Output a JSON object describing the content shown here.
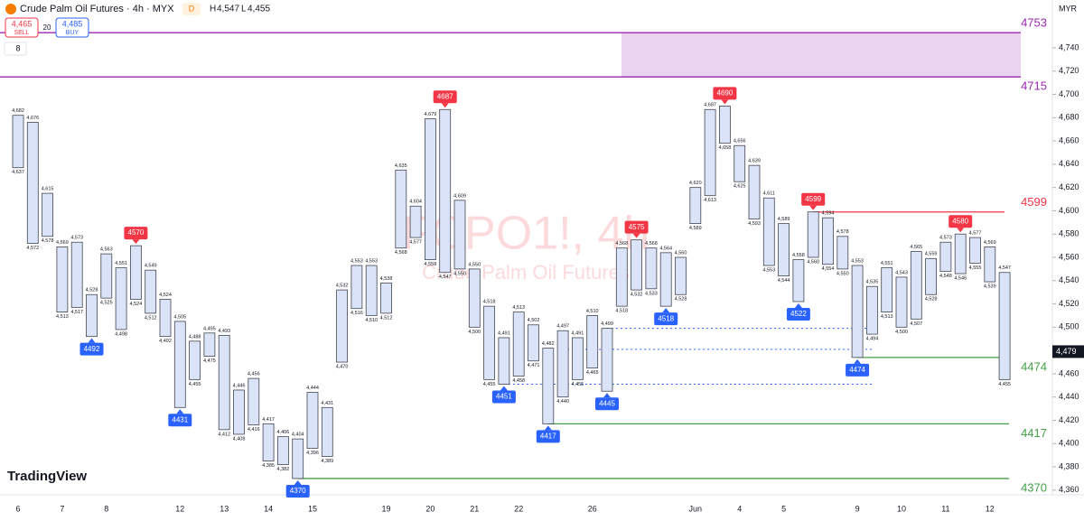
{
  "header": {
    "symbol": "Crude Palm Oil Futures · 4h · MYX",
    "badge": "D",
    "high_prefix": "H",
    "high": "4,547",
    "low_prefix": "L",
    "low": "4,455",
    "sell_price": "4,465",
    "sell": "SELL",
    "spread": "20",
    "buy_price": "4,485",
    "buy": "BUY",
    "indicators": "8",
    "currency": "MYR"
  },
  "watermark": {
    "ticker": "FCPO1!, 4h",
    "name": "Crude Palm Oil Futures"
  },
  "logo": "TradingView",
  "chart_data": {
    "type": "box",
    "categories": [
      "6",
      null,
      null,
      "7",
      null,
      null,
      "8",
      null,
      null,
      null,
      null,
      "12",
      null,
      null,
      "13",
      null,
      null,
      "14",
      null,
      null,
      "15",
      null,
      null,
      null,
      null,
      "19",
      null,
      null,
      "20",
      null,
      null,
      "21",
      null,
      null,
      "22",
      null,
      null,
      null,
      null,
      "26",
      null,
      null,
      null,
      null,
      null,
      null,
      "Jun",
      null,
      null,
      "4",
      null,
      null,
      "5",
      null,
      null,
      null,
      null,
      "9",
      null,
      null,
      "10",
      null,
      null,
      "11",
      null,
      null,
      "12",
      null
    ],
    "top": [
      4682,
      4676,
      4615,
      4569,
      4573,
      4528,
      4563,
      4551,
      4570,
      4549,
      4524,
      4505,
      4488,
      4495,
      4493,
      4446,
      4456,
      4417,
      4406,
      4404,
      4444,
      4431,
      4532,
      4553,
      4553,
      4538,
      4635,
      4604,
      4679,
      4687,
      4609,
      4550,
      4518,
      4491,
      4513,
      4502,
      4482,
      4497,
      4491,
      4510,
      4499,
      4568,
      4575,
      4568,
      4564,
      4560,
      4620,
      4687,
      4690,
      4656,
      4639,
      4611,
      4589,
      4558,
      4599,
      4594,
      4578,
      4553,
      4535,
      4551,
      4543,
      4565,
      4559,
      4573,
      4580,
      4577,
      4569,
      4547
    ],
    "top_labels": [
      "4,682",
      "4,676",
      "4,615",
      "4,569",
      "4,573",
      "4,528",
      "4,563",
      "4,551",
      null,
      "4,549",
      "4,524",
      "4,505",
      "4,488",
      "4,495",
      "4,493",
      "4,446",
      "4,456",
      "4,417",
      "4,406",
      "4,404",
      "4,444",
      "4,431",
      "4,532",
      "4,553",
      "4,553",
      "4,538",
      "4,635",
      "4,604",
      "4,679",
      null,
      "4,609",
      "4,550",
      "4,518",
      "4,491",
      "4,513",
      "4,502",
      "4,482",
      "4,497",
      "4,491",
      "4,510",
      "4,499",
      "4,568",
      null,
      "4,568",
      "4,564",
      "4,560",
      "4,620",
      "4,687",
      null,
      "4,656",
      "4,639",
      "4,611",
      "4,589",
      "4,558",
      null,
      "4,594",
      "4,578",
      "4,553",
      "4,535",
      "4,551",
      "4,543",
      "4,565",
      "4,559",
      "4,573",
      null,
      "4,577",
      "4,569",
      "4,547"
    ],
    "bottom": [
      4637,
      4572,
      4578,
      4513,
      4517,
      4492,
      4525,
      4498,
      4524,
      4512,
      4492,
      4431,
      4455,
      4475,
      4412,
      4408,
      4416,
      4385,
      4382,
      4370,
      4396,
      4389,
      4470,
      4516,
      4510,
      4512,
      4568,
      4577,
      4558,
      4547,
      4550,
      4500,
      4455,
      4451,
      4458,
      4471,
      4417,
      4440,
      4455,
      4465,
      4445,
      4518,
      4532,
      4533,
      4518,
      4528,
      4589,
      4613,
      4658,
      4625,
      4593,
      4553,
      4544,
      4522,
      4560,
      4554,
      4550,
      4474,
      4494,
      4513,
      4500,
      4507,
      4528,
      4548,
      4546,
      4555,
      4539,
      4455
    ],
    "bottom_labels": [
      "4,637",
      "4,572",
      "4,578",
      "4,513",
      "4,517",
      null,
      "4,525",
      "4,498",
      "4,524",
      "4,512",
      "4,492",
      null,
      "4,455",
      "4,475",
      "4,412",
      "4,408",
      "4,416",
      "4,385",
      "4,382",
      null,
      "4,396",
      "4,389",
      "4,470",
      "4,516",
      "4,510",
      "4,512",
      "4,568",
      "4,577",
      "4,558",
      "4,547",
      "4,550",
      "4,500",
      "4,455",
      null,
      "4,458",
      "4,471",
      null,
      "4,440",
      "4,455",
      "4,465",
      null,
      "4,518",
      "4,532",
      "4,533",
      null,
      "4,528",
      "4,589",
      "4,613",
      "4,658",
      "4,625",
      "4,593",
      "4,553",
      "4,544",
      null,
      "4,560",
      "4,554",
      "4,550",
      null,
      "4,494",
      "4,513",
      "4,500",
      "4,507",
      "4,528",
      "4,548",
      "4,546",
      "4,555",
      "4,539",
      "4,455"
    ],
    "highs": [
      null,
      null,
      null,
      null,
      null,
      null,
      null,
      null,
      4570,
      null,
      null,
      null,
      null,
      null,
      null,
      null,
      null,
      null,
      null,
      null,
      null,
      null,
      null,
      null,
      null,
      null,
      null,
      null,
      null,
      4687,
      null,
      null,
      null,
      null,
      null,
      null,
      null,
      null,
      null,
      null,
      null,
      null,
      4575,
      null,
      null,
      null,
      null,
      null,
      4690,
      null,
      null,
      null,
      null,
      null,
      4599,
      null,
      null,
      null,
      null,
      null,
      null,
      null,
      null,
      null,
      4580,
      null,
      null,
      null
    ],
    "lows": [
      null,
      null,
      null,
      null,
      null,
      4492,
      null,
      null,
      null,
      null,
      null,
      4431,
      null,
      null,
      null,
      null,
      null,
      null,
      null,
      4370,
      null,
      null,
      null,
      null,
      null,
      null,
      null,
      null,
      null,
      null,
      null,
      null,
      null,
      4451,
      null,
      null,
      4417,
      null,
      null,
      null,
      4445,
      null,
      null,
      null,
      4518,
      null,
      null,
      null,
      null,
      null,
      null,
      null,
      null,
      4522,
      null,
      null,
      null,
      4474,
      null,
      null,
      null,
      null,
      null,
      null,
      null,
      null,
      null,
      null
    ],
    "box_color": "#dbe3f8",
    "high_color": "#f23645",
    "low_color": "#2962ff",
    "zone": {
      "top": 4753,
      "bottom": 4715,
      "color": "#e9d3ef"
    },
    "levels": [
      {
        "value": 4753,
        "color": "#9c27b0",
        "label_position": "above"
      },
      {
        "value": 4715,
        "color": "#9c27b0",
        "label_position": "below"
      },
      {
        "value": 4599,
        "color": "#f23645",
        "label_position": "above"
      },
      {
        "value": 4474,
        "color": "#43a047",
        "label_position": "below"
      },
      {
        "value": 4417,
        "color": "#43a047",
        "label_position": "below"
      },
      {
        "value": 4370,
        "color": "#43a047",
        "label_position": "below"
      }
    ],
    "dotted_levels": [
      4499,
      4481,
      4451
    ],
    "price_tag": {
      "value": 4479,
      "label": "4,479"
    },
    "ylim": [
      4356,
      4764
    ],
    "yticks": [
      {
        "value": 4360,
        "label": "4,360"
      },
      {
        "value": 4380,
        "label": "4,380"
      },
      {
        "value": 4400,
        "label": "4,400"
      },
      {
        "value": 4420,
        "label": "4,420"
      },
      {
        "value": 4440,
        "label": "4,440"
      },
      {
        "value": 4460,
        "label": "4,460"
      },
      {
        "value": 4500,
        "label": "4,500"
      },
      {
        "value": 4520,
        "label": "4,520"
      },
      {
        "value": 4540,
        "label": "4,540"
      },
      {
        "value": 4560,
        "label": "4,560"
      },
      {
        "value": 4580,
        "label": "4,580"
      },
      {
        "value": 4600,
        "label": "4,600"
      },
      {
        "value": 4620,
        "label": "4,620"
      },
      {
        "value": 4640,
        "label": "4,640"
      },
      {
        "value": 4660,
        "label": "4,660"
      },
      {
        "value": 4680,
        "label": "4,680"
      },
      {
        "value": 4700,
        "label": "4,700"
      },
      {
        "value": 4720,
        "label": "4,720"
      },
      {
        "value": 4740,
        "label": "4,740"
      }
    ]
  }
}
